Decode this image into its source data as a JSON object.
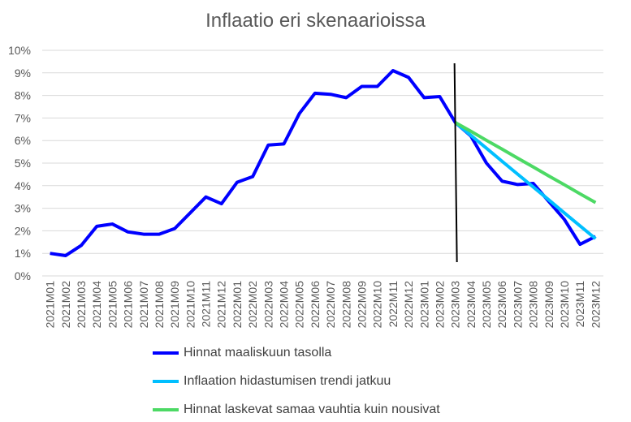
{
  "chart_data": {
    "type": "line",
    "title": "Inflaatio eri skenaarioissa",
    "categories": [
      "2021M01",
      "2021M02",
      "2021M03",
      "2021M04",
      "2021M05",
      "2021M06",
      "2021M07",
      "2021M08",
      "2021M09",
      "2021M10",
      "2021M11",
      "2021M12",
      "2022M01",
      "2022M02",
      "2022M03",
      "2022M04",
      "2022M05",
      "2022M06",
      "2022M07",
      "2022M08",
      "2022M09",
      "2022M10",
      "2022M11",
      "2022M12",
      "2023M01",
      "2023M02",
      "2023M03",
      "2023M04",
      "2023M05",
      "2023M06",
      "2023M07",
      "2023M08",
      "2023M09",
      "2023M10",
      "2023M11",
      "2023M12"
    ],
    "ylim": [
      0,
      10
    ],
    "yticks": [
      "0%",
      "1%",
      "2%",
      "3%",
      "4%",
      "5%",
      "6%",
      "7%",
      "8%",
      "9%",
      "10%"
    ],
    "grid": true,
    "legend_position": "bottom",
    "series": [
      {
        "name": "Hinnat maaliskuun tasolla",
        "color": "#0000FF",
        "values": [
          1.0,
          0.9,
          1.35,
          2.2,
          2.3,
          1.95,
          1.85,
          1.85,
          2.1,
          2.8,
          3.5,
          3.2,
          4.15,
          4.4,
          5.8,
          5.85,
          7.2,
          8.1,
          8.05,
          7.9,
          8.4,
          8.4,
          9.1,
          8.8,
          7.9,
          7.95,
          6.8,
          6.2,
          5.0,
          4.2,
          4.05,
          4.1,
          3.3,
          2.5,
          1.4,
          1.75
        ]
      },
      {
        "name": "Inflaation hidastumisen trendi jatkuu",
        "color": "#00BFFF",
        "values": [
          null,
          null,
          null,
          null,
          null,
          null,
          null,
          null,
          null,
          null,
          null,
          null,
          null,
          null,
          null,
          null,
          null,
          null,
          null,
          null,
          null,
          null,
          null,
          null,
          null,
          null,
          6.8,
          6.23,
          5.66,
          5.08,
          4.51,
          3.94,
          3.37,
          2.79,
          2.22,
          1.65
        ]
      },
      {
        "name": "Hinnat laskevat samaa vauhtia kuin nousivat",
        "color": "#4CD964",
        "values": [
          null,
          null,
          null,
          null,
          null,
          null,
          null,
          null,
          null,
          null,
          null,
          null,
          null,
          null,
          null,
          null,
          null,
          null,
          null,
          null,
          null,
          null,
          null,
          null,
          null,
          null,
          6.8,
          6.41,
          6.01,
          5.62,
          5.22,
          4.83,
          4.43,
          4.04,
          3.64,
          3.25
        ]
      }
    ],
    "annotations": [
      {
        "type": "vertical-line",
        "at": "2023M03",
        "color": "#000000"
      }
    ]
  }
}
